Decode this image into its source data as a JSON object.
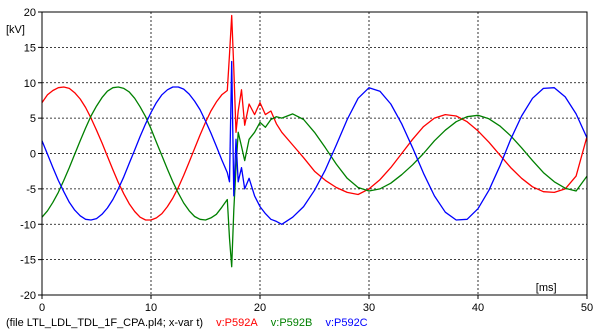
{
  "chart_data": {
    "type": "line",
    "title": "",
    "xlabel": "",
    "ylabel": "",
    "x_unit": "[ms]",
    "y_unit": "[kV]",
    "xlim": [
      0,
      50
    ],
    "ylim": [
      -20,
      20
    ],
    "x_ticks": [
      0,
      10,
      20,
      30,
      40,
      50
    ],
    "x_tick_labels": [
      "0",
      "10",
      "20",
      "30",
      "",
      "50"
    ],
    "y_ticks": [
      -20,
      -15,
      -10,
      -5,
      0,
      5,
      10,
      15,
      20
    ],
    "y_tick_labels": [
      "-20",
      "-15",
      "-10",
      "-5",
      "0",
      "5",
      "10",
      "15",
      "20"
    ],
    "x_extra_ticks": [
      40
    ],
    "x_extra_tick_labels": [
      "40"
    ],
    "grid": true,
    "file_caption": "(file LTL_LDL_TDL_1F_CPA.pl4; x-var t)",
    "series": [
      {
        "name": "v:P592A",
        "color": "#ff0000",
        "points": [
          [
            0,
            7.2
          ],
          [
            0.5,
            8.3
          ],
          [
            1,
            8.9
          ],
          [
            1.5,
            9.3
          ],
          [
            2,
            9.4
          ],
          [
            2.5,
            9.2
          ],
          [
            3,
            8.6
          ],
          [
            3.5,
            7.7
          ],
          [
            4,
            6.5
          ],
          [
            4.5,
            5.0
          ],
          [
            5,
            3.3
          ],
          [
            5.5,
            1.5
          ],
          [
            6,
            -0.4
          ],
          [
            6.5,
            -2.3
          ],
          [
            7,
            -4.1
          ],
          [
            7.5,
            -5.7
          ],
          [
            8,
            -7.1
          ],
          [
            8.5,
            -8.2
          ],
          [
            9,
            -9.0
          ],
          [
            9.5,
            -9.4
          ],
          [
            10,
            -9.4
          ],
          [
            10.5,
            -9.1
          ],
          [
            11,
            -8.5
          ],
          [
            11.5,
            -7.5
          ],
          [
            12,
            -6.3
          ],
          [
            12.5,
            -4.8
          ],
          [
            13,
            -3.1
          ],
          [
            13.5,
            -1.2
          ],
          [
            14,
            0.7
          ],
          [
            14.5,
            2.6
          ],
          [
            15,
            4.4
          ],
          [
            15.5,
            6.0
          ],
          [
            16,
            7.3
          ],
          [
            16.5,
            8.3
          ],
          [
            17,
            8.9
          ],
          [
            17.2,
            14
          ],
          [
            17.4,
            19.5
          ],
          [
            17.6,
            12
          ],
          [
            17.8,
            3
          ],
          [
            18,
            6
          ],
          [
            18.3,
            9
          ],
          [
            18.6,
            4
          ],
          [
            19,
            7
          ],
          [
            19.5,
            5.5
          ],
          [
            20,
            7.2
          ],
          [
            20.5,
            5.5
          ],
          [
            21,
            6.0
          ],
          [
            21.5,
            4.2
          ],
          [
            22,
            3.0
          ],
          [
            23,
            1.2
          ],
          [
            24,
            -0.6
          ],
          [
            25,
            -2.5
          ],
          [
            26,
            -3.8
          ],
          [
            27,
            -4.8
          ],
          [
            28,
            -5.5
          ],
          [
            29,
            -5.8
          ],
          [
            30,
            -5.0
          ],
          [
            31,
            -3.7
          ],
          [
            32,
            -2.0
          ],
          [
            33,
            0.0
          ],
          [
            34,
            2.0
          ],
          [
            35,
            3.8
          ],
          [
            36,
            5.0
          ],
          [
            37,
            5.5
          ],
          [
            38,
            5.3
          ],
          [
            39,
            4.5
          ],
          [
            40,
            3.2
          ],
          [
            41,
            1.6
          ],
          [
            42,
            -0.2
          ],
          [
            43,
            -2.0
          ],
          [
            44,
            -3.5
          ],
          [
            45,
            -4.7
          ],
          [
            46,
            -5.4
          ],
          [
            47,
            -5.5
          ],
          [
            48,
            -5.0
          ],
          [
            49,
            -3.2
          ],
          [
            50,
            2.4
          ]
        ]
      },
      {
        "name": "v:P592B",
        "color": "#008000",
        "points": [
          [
            0,
            -9.0
          ],
          [
            0.5,
            -8.1
          ],
          [
            1,
            -6.9
          ],
          [
            1.5,
            -5.5
          ],
          [
            2,
            -3.8
          ],
          [
            2.5,
            -2.0
          ],
          [
            3,
            -0.1
          ],
          [
            3.5,
            1.8
          ],
          [
            4,
            3.6
          ],
          [
            4.5,
            5.3
          ],
          [
            5,
            6.7
          ],
          [
            5.5,
            7.9
          ],
          [
            6,
            8.8
          ],
          [
            6.5,
            9.3
          ],
          [
            7,
            9.4
          ],
          [
            7.5,
            9.2
          ],
          [
            8,
            8.7
          ],
          [
            8.5,
            7.8
          ],
          [
            9,
            6.6
          ],
          [
            9.5,
            5.2
          ],
          [
            10,
            3.5
          ],
          [
            10.5,
            1.6
          ],
          [
            11,
            -0.3
          ],
          [
            11.5,
            -2.2
          ],
          [
            12,
            -4.0
          ],
          [
            12.5,
            -5.6
          ],
          [
            13,
            -7.0
          ],
          [
            13.5,
            -8.1
          ],
          [
            14,
            -8.9
          ],
          [
            14.5,
            -9.3
          ],
          [
            15,
            -9.4
          ],
          [
            15.5,
            -9.1
          ],
          [
            16,
            -8.6
          ],
          [
            16.5,
            -7.6
          ],
          [
            17,
            -6.5
          ],
          [
            17.2,
            -12
          ],
          [
            17.4,
            -16
          ],
          [
            17.6,
            -8
          ],
          [
            17.8,
            -2
          ],
          [
            18,
            3
          ],
          [
            18.3,
            1
          ],
          [
            18.6,
            -1
          ],
          [
            19,
            2
          ],
          [
            19.5,
            3.0
          ],
          [
            20,
            4.4
          ],
          [
            20.5,
            3.7
          ],
          [
            21,
            4.8
          ],
          [
            21.5,
            5.2
          ],
          [
            22,
            5.0
          ],
          [
            23,
            5.6
          ],
          [
            24,
            4.8
          ],
          [
            25,
            3.0
          ],
          [
            26,
            0.8
          ],
          [
            27,
            -1.5
          ],
          [
            28,
            -3.5
          ],
          [
            29,
            -4.8
          ],
          [
            30,
            -5.3
          ],
          [
            31,
            -5.0
          ],
          [
            32,
            -4.2
          ],
          [
            33,
            -3.0
          ],
          [
            34,
            -1.6
          ],
          [
            35,
            0.0
          ],
          [
            36,
            1.8
          ],
          [
            37,
            3.3
          ],
          [
            38,
            4.5
          ],
          [
            39,
            5.2
          ],
          [
            40,
            5.4
          ],
          [
            41,
            4.9
          ],
          [
            42,
            3.9
          ],
          [
            43,
            2.5
          ],
          [
            44,
            0.8
          ],
          [
            45,
            -1.0
          ],
          [
            46,
            -2.7
          ],
          [
            47,
            -4.0
          ],
          [
            48,
            -4.9
          ],
          [
            49,
            -5.3
          ],
          [
            50,
            -3.2
          ]
        ]
      },
      {
        "name": "v:P592C",
        "color": "#0000ff",
        "points": [
          [
            0,
            1.8
          ],
          [
            0.5,
            -0.1
          ],
          [
            1,
            -2.0
          ],
          [
            1.5,
            -3.8
          ],
          [
            2,
            -5.4
          ],
          [
            2.5,
            -6.9
          ],
          [
            3,
            -8.0
          ],
          [
            3.5,
            -8.8
          ],
          [
            4,
            -9.3
          ],
          [
            4.5,
            -9.4
          ],
          [
            5,
            -9.2
          ],
          [
            5.5,
            -8.6
          ],
          [
            6,
            -7.7
          ],
          [
            6.5,
            -6.5
          ],
          [
            7,
            -5.0
          ],
          [
            7.5,
            -3.3
          ],
          [
            8,
            -1.4
          ],
          [
            8.5,
            0.5
          ],
          [
            9,
            2.4
          ],
          [
            9.5,
            4.2
          ],
          [
            10,
            5.8
          ],
          [
            10.5,
            7.2
          ],
          [
            11,
            8.3
          ],
          [
            11.5,
            9.0
          ],
          [
            12,
            9.4
          ],
          [
            12.5,
            9.4
          ],
          [
            13,
            9.1
          ],
          [
            13.5,
            8.4
          ],
          [
            14,
            7.4
          ],
          [
            14.5,
            6.2
          ],
          [
            15,
            4.6
          ],
          [
            15.5,
            2.9
          ],
          [
            16,
            1.0
          ],
          [
            16.5,
            -0.9
          ],
          [
            17,
            -2.7
          ],
          [
            17.2,
            -4
          ],
          [
            17.4,
            13
          ],
          [
            17.6,
            -6
          ],
          [
            17.8,
            2
          ],
          [
            18,
            -4
          ],
          [
            18.3,
            -2
          ],
          [
            18.6,
            -5
          ],
          [
            19,
            -3.5
          ],
          [
            19.5,
            -6.0
          ],
          [
            20,
            -7.5
          ],
          [
            20.5,
            -8.5
          ],
          [
            21,
            -9.3
          ],
          [
            21.5,
            -9.6
          ],
          [
            22,
            -10.0
          ],
          [
            23,
            -9.0
          ],
          [
            24,
            -7.5
          ],
          [
            25,
            -5.2
          ],
          [
            26,
            -2.3
          ],
          [
            27,
            1.2
          ],
          [
            28,
            4.8
          ],
          [
            29,
            7.8
          ],
          [
            30,
            9.3
          ],
          [
            31,
            8.8
          ],
          [
            32,
            7.0
          ],
          [
            33,
            4.2
          ],
          [
            34,
            0.8
          ],
          [
            35,
            -2.8
          ],
          [
            36,
            -6.0
          ],
          [
            37,
            -8.3
          ],
          [
            38,
            -9.4
          ],
          [
            39,
            -9.3
          ],
          [
            40,
            -7.8
          ],
          [
            41,
            -5.2
          ],
          [
            42,
            -1.8
          ],
          [
            43,
            2.0
          ],
          [
            44,
            5.3
          ],
          [
            45,
            7.8
          ],
          [
            46,
            9.2
          ],
          [
            47,
            9.3
          ],
          [
            48,
            8.0
          ],
          [
            49,
            5.6
          ],
          [
            50,
            2.2
          ]
        ]
      }
    ]
  }
}
